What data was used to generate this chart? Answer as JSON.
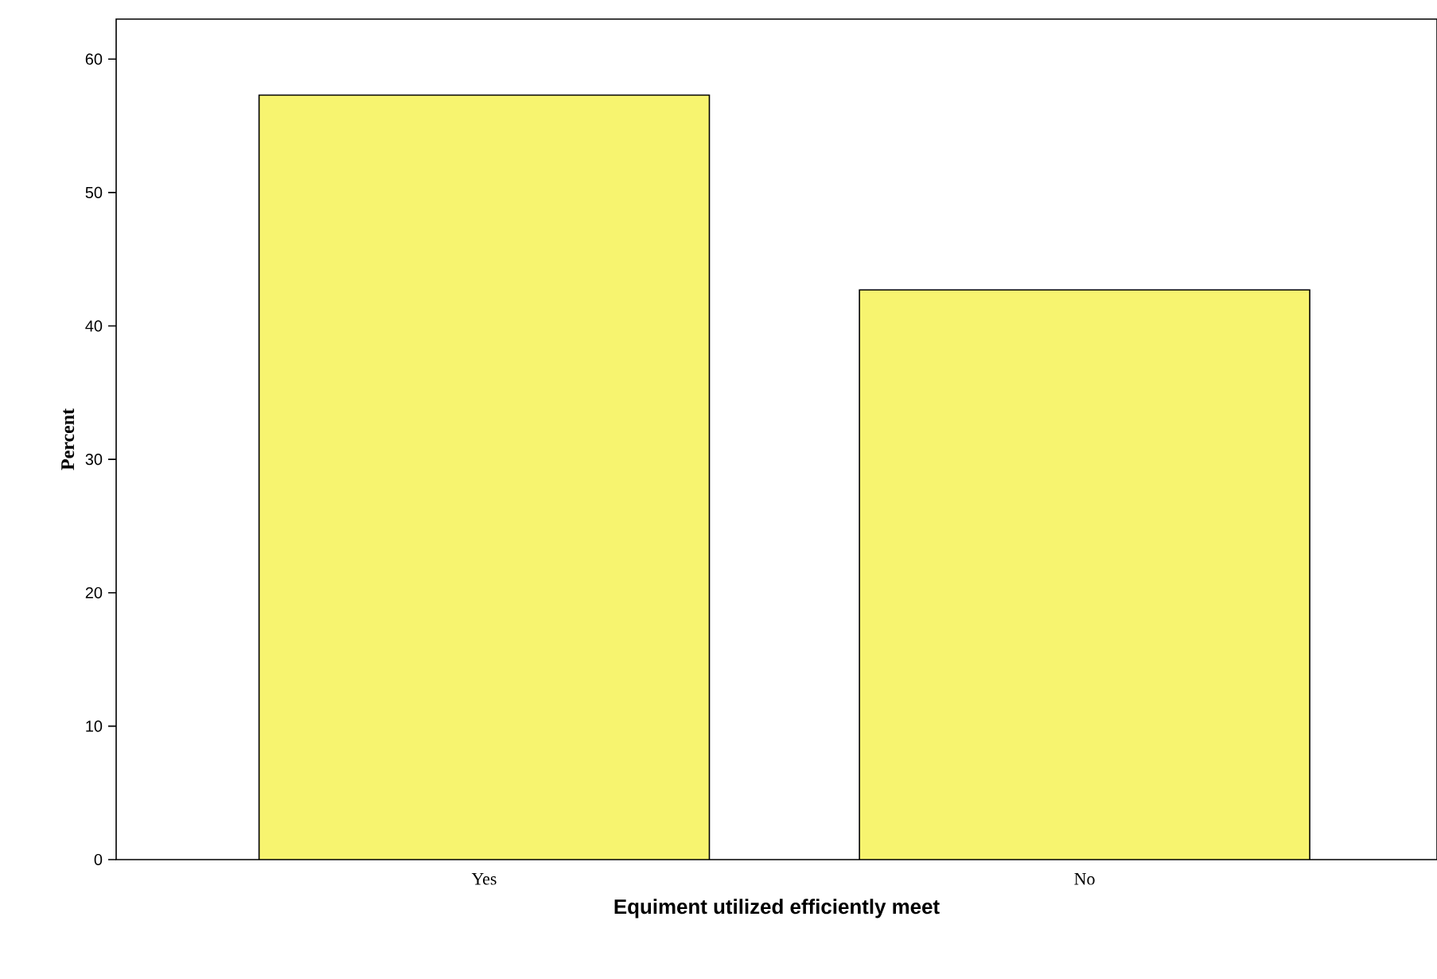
{
  "chart_data": {
    "type": "bar",
    "xlabel": "Equiment utilized efficiently meet",
    "ylabel": "Percent",
    "categories": [
      "Yes",
      "No"
    ],
    "values": [
      57.3,
      42.7
    ],
    "color": "#f7f46f",
    "ylim": [
      0,
      63
    ],
    "yticks": [
      0,
      10,
      20,
      30,
      40,
      50,
      60
    ],
    "grid": false
  }
}
